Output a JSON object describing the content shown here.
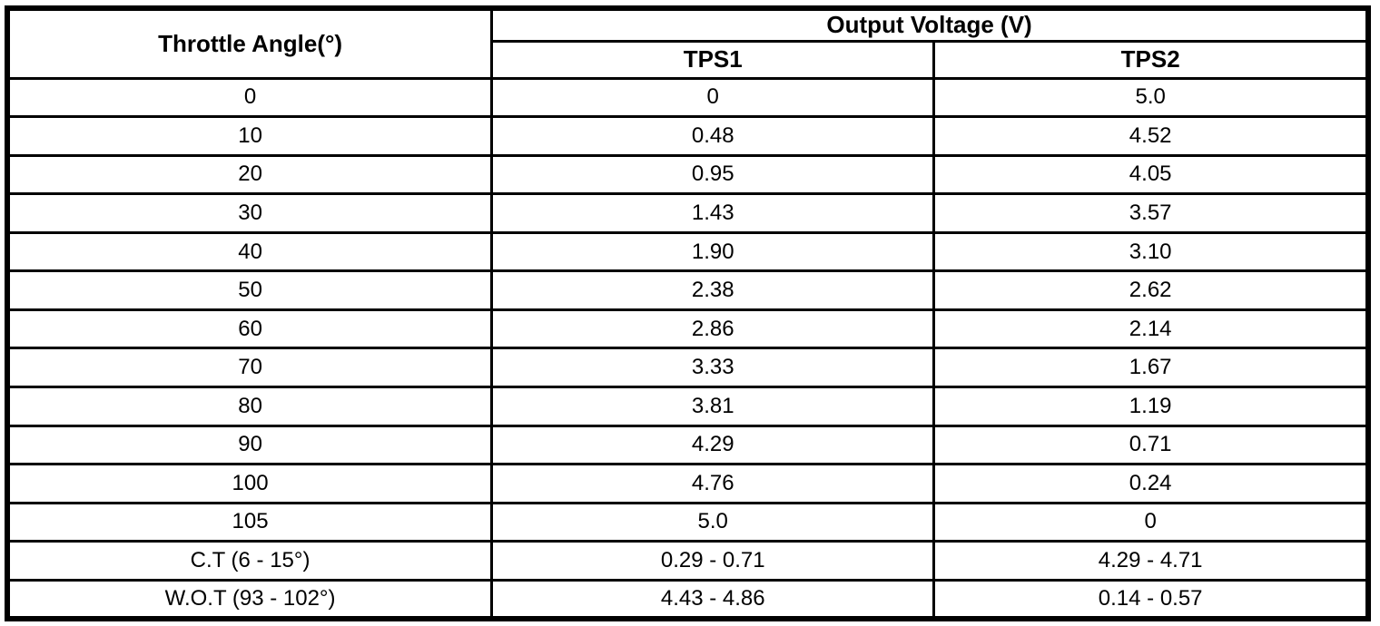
{
  "colors": {
    "border": "#000000",
    "background": "#ffffff",
    "text": "#000000"
  },
  "table": {
    "angle_header": "Throttle Angle(°)",
    "group_header": "Output Voltage (V)",
    "sub_headers": [
      "TPS1",
      "TPS2"
    ],
    "rows": [
      {
        "angle": "0",
        "tps1": "0",
        "tps2": "5.0"
      },
      {
        "angle": "10",
        "tps1": "0.48",
        "tps2": "4.52"
      },
      {
        "angle": "20",
        "tps1": "0.95",
        "tps2": "4.05"
      },
      {
        "angle": "30",
        "tps1": "1.43",
        "tps2": "3.57"
      },
      {
        "angle": "40",
        "tps1": "1.90",
        "tps2": "3.10"
      },
      {
        "angle": "50",
        "tps1": "2.38",
        "tps2": "2.62"
      },
      {
        "angle": "60",
        "tps1": "2.86",
        "tps2": "2.14"
      },
      {
        "angle": "70",
        "tps1": "3.33",
        "tps2": "1.67"
      },
      {
        "angle": "80",
        "tps1": "3.81",
        "tps2": "1.19"
      },
      {
        "angle": "90",
        "tps1": "4.29",
        "tps2": "0.71"
      },
      {
        "angle": "100",
        "tps1": "4.76",
        "tps2": "0.24"
      },
      {
        "angle": "105",
        "tps1": "5.0",
        "tps2": "0"
      },
      {
        "angle": "C.T (6 - 15°)",
        "tps1": "0.29 - 0.71",
        "tps2": "4.29 - 4.71"
      },
      {
        "angle": "W.O.T (93 - 102°)",
        "tps1": "4.43 - 4.86",
        "tps2": "0.14 - 0.57"
      }
    ]
  }
}
